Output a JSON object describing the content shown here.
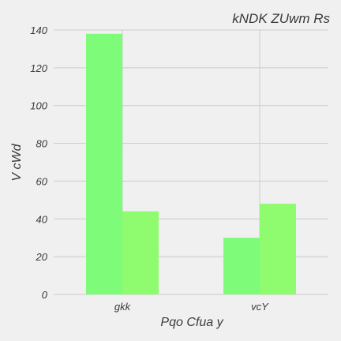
{
  "chart_data": {
    "type": "bar",
    "title": "kNDK ZUwm  Rs",
    "xlabel": "Pqo Cfua y",
    "ylabel": "V cWd",
    "categories": [
      "gkk",
      "vcY"
    ],
    "series": [
      {
        "values": [
          138,
          30
        ],
        "color": "#7ffb7a"
      },
      {
        "values": [
          44,
          48
        ],
        "color": "#8ffb6e"
      }
    ],
    "ylim": [
      0,
      140
    ],
    "yticks": [
      0,
      20,
      40,
      60,
      80,
      100,
      120,
      140
    ],
    "grid": true,
    "legend": "none"
  }
}
